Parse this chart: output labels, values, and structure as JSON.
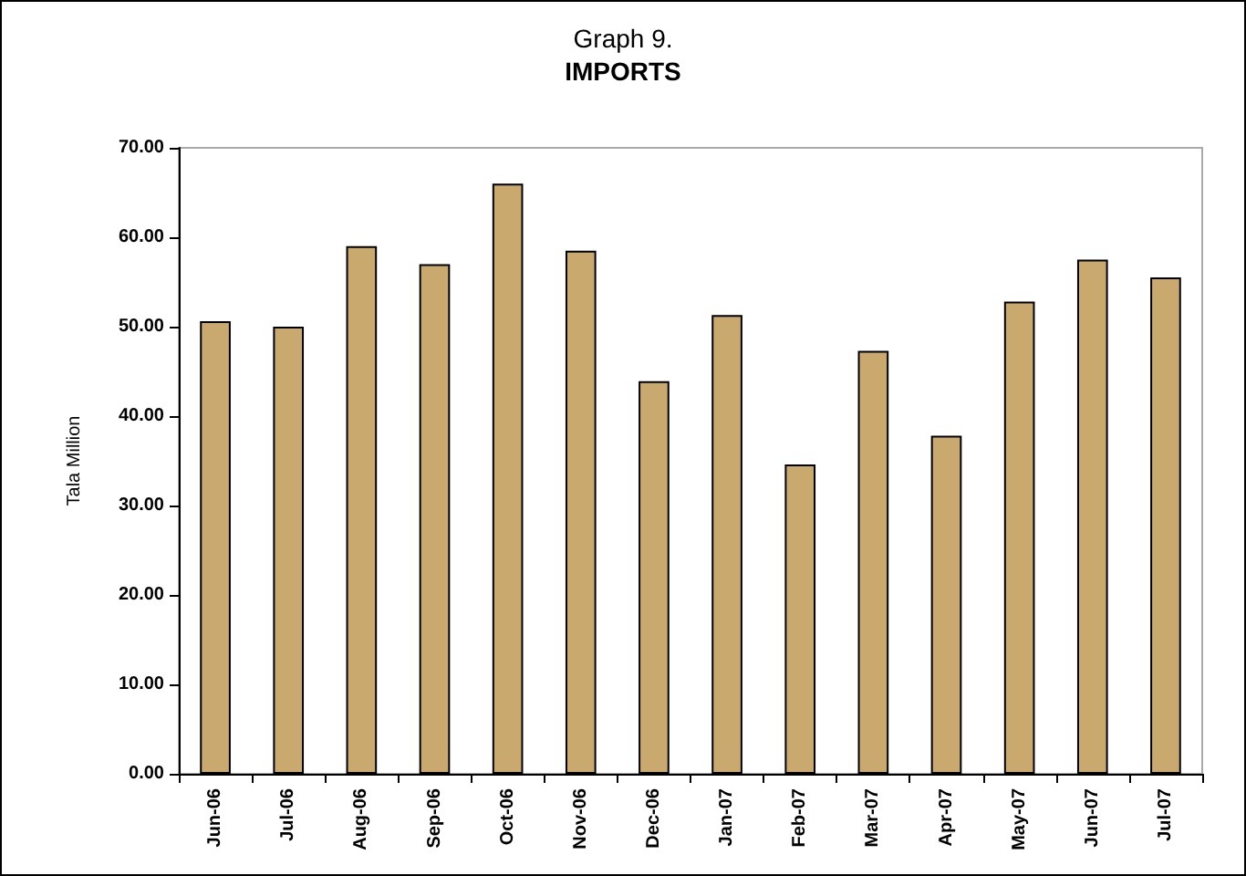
{
  "chart_data": {
    "type": "bar",
    "title": "Graph 9.",
    "subtitle": "IMPORTS",
    "ylabel": "Tala Million",
    "categories": [
      "Jun-06",
      "Jul-06",
      "Aug-06",
      "Sep-06",
      "Oct-06",
      "Nov-06",
      "Dec-06",
      "Jan-07",
      "Feb-07",
      "Mar-07",
      "Apr-07",
      "May-07",
      "Jun-07",
      "Jul-07"
    ],
    "values": [
      50.6,
      50.0,
      59.0,
      57.0,
      66.0,
      58.5,
      43.9,
      51.3,
      34.6,
      47.3,
      37.8,
      52.8,
      57.5,
      55.5
    ],
    "color": "#c9a96e",
    "ylim": [
      0,
      70
    ],
    "yticks": [
      {
        "value": 0,
        "label": "0.00"
      },
      {
        "value": 10,
        "label": "10.00"
      },
      {
        "value": 20,
        "label": "20.00"
      },
      {
        "value": 30,
        "label": "30.00"
      },
      {
        "value": 40,
        "label": "40.00"
      },
      {
        "value": 50,
        "label": "50.00"
      },
      {
        "value": 60,
        "label": "60.00"
      },
      {
        "value": 70,
        "label": "70.00"
      }
    ],
    "grid": false
  }
}
